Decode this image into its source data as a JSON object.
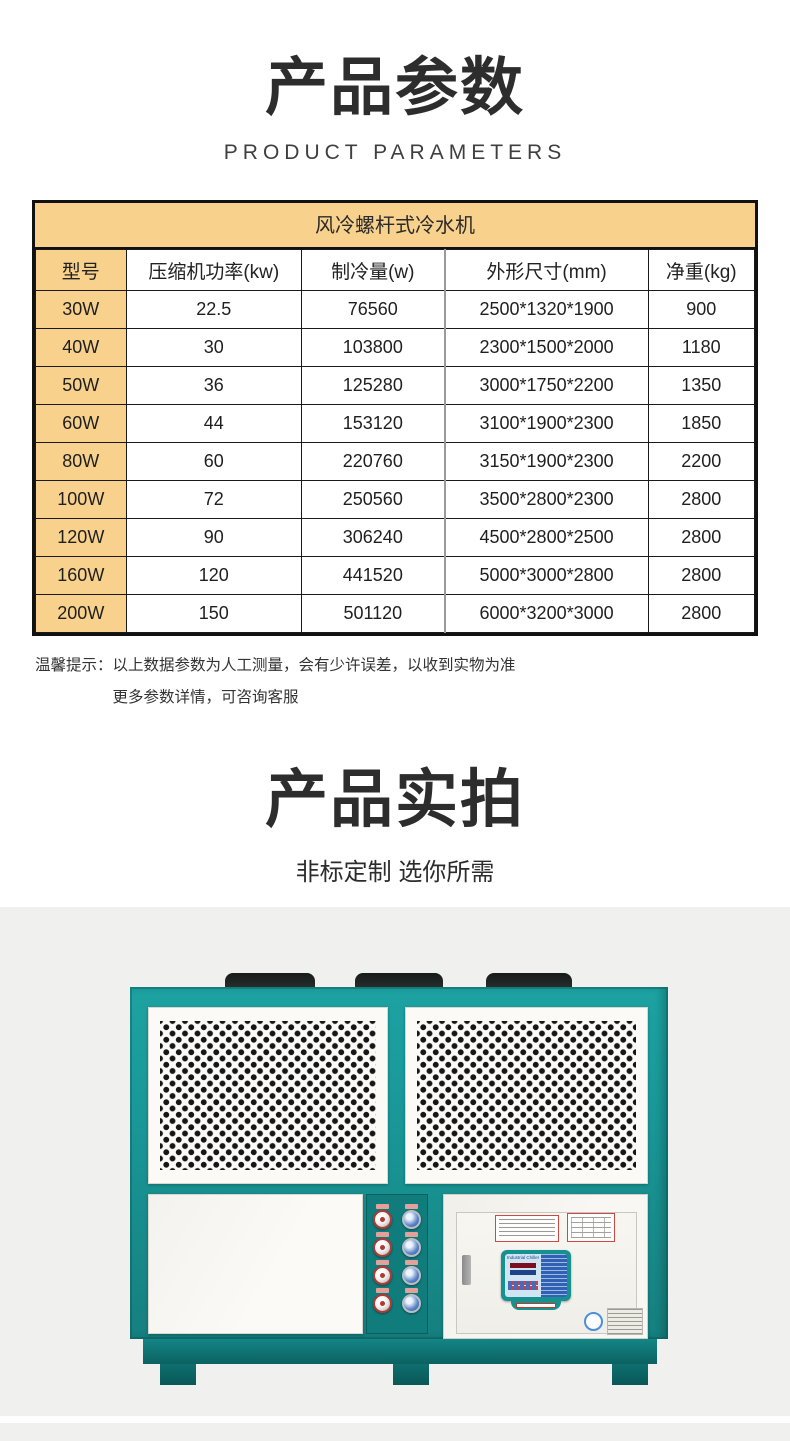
{
  "section1": {
    "title": "产品参数",
    "subtitle": "PRODUCT PARAMETERS"
  },
  "table": {
    "title": "风冷螺杆式冷水机",
    "columns": [
      "型号",
      "压缩机功率(kw)",
      "制冷量(w)",
      "外形尺寸(mm)",
      "净重(kg)"
    ],
    "rows": [
      [
        "30W",
        "22.5",
        "76560",
        "2500*1320*1900",
        "900"
      ],
      [
        "40W",
        "30",
        "103800",
        "2300*1500*2000",
        "1180"
      ],
      [
        "50W",
        "36",
        "125280",
        "3000*1750*2200",
        "1350"
      ],
      [
        "60W",
        "44",
        "153120",
        "3100*1900*2300",
        "1850"
      ],
      [
        "80W",
        "60",
        "220760",
        "3150*1900*2300",
        "2200"
      ],
      [
        "100W",
        "72",
        "250560",
        "3500*2800*2300",
        "2800"
      ],
      [
        "120W",
        "90",
        "306240",
        "4500*2800*2500",
        "2800"
      ],
      [
        "160W",
        "120",
        "441520",
        "5000*3000*2800",
        "2800"
      ],
      [
        "200W",
        "150",
        "501120",
        "6000*3200*3000",
        "2800"
      ]
    ]
  },
  "note": {
    "label": "温馨提示：",
    "line1": "以上数据参数为人工测量，会有少许误差，以收到实物为准",
    "line2": "更多参数详情，可咨询客服"
  },
  "section2": {
    "title": "产品实拍",
    "subtitle": "非标定制 选你所需"
  },
  "machine": {
    "screen_brand": "Industrial Chiller"
  },
  "colors": {
    "table_header_bg": "#f8d28d",
    "table_border": "#111111",
    "machine_teal": "#1a9899",
    "photo_background": "#f0f0ee",
    "title_text": "#2d2d2d"
  }
}
